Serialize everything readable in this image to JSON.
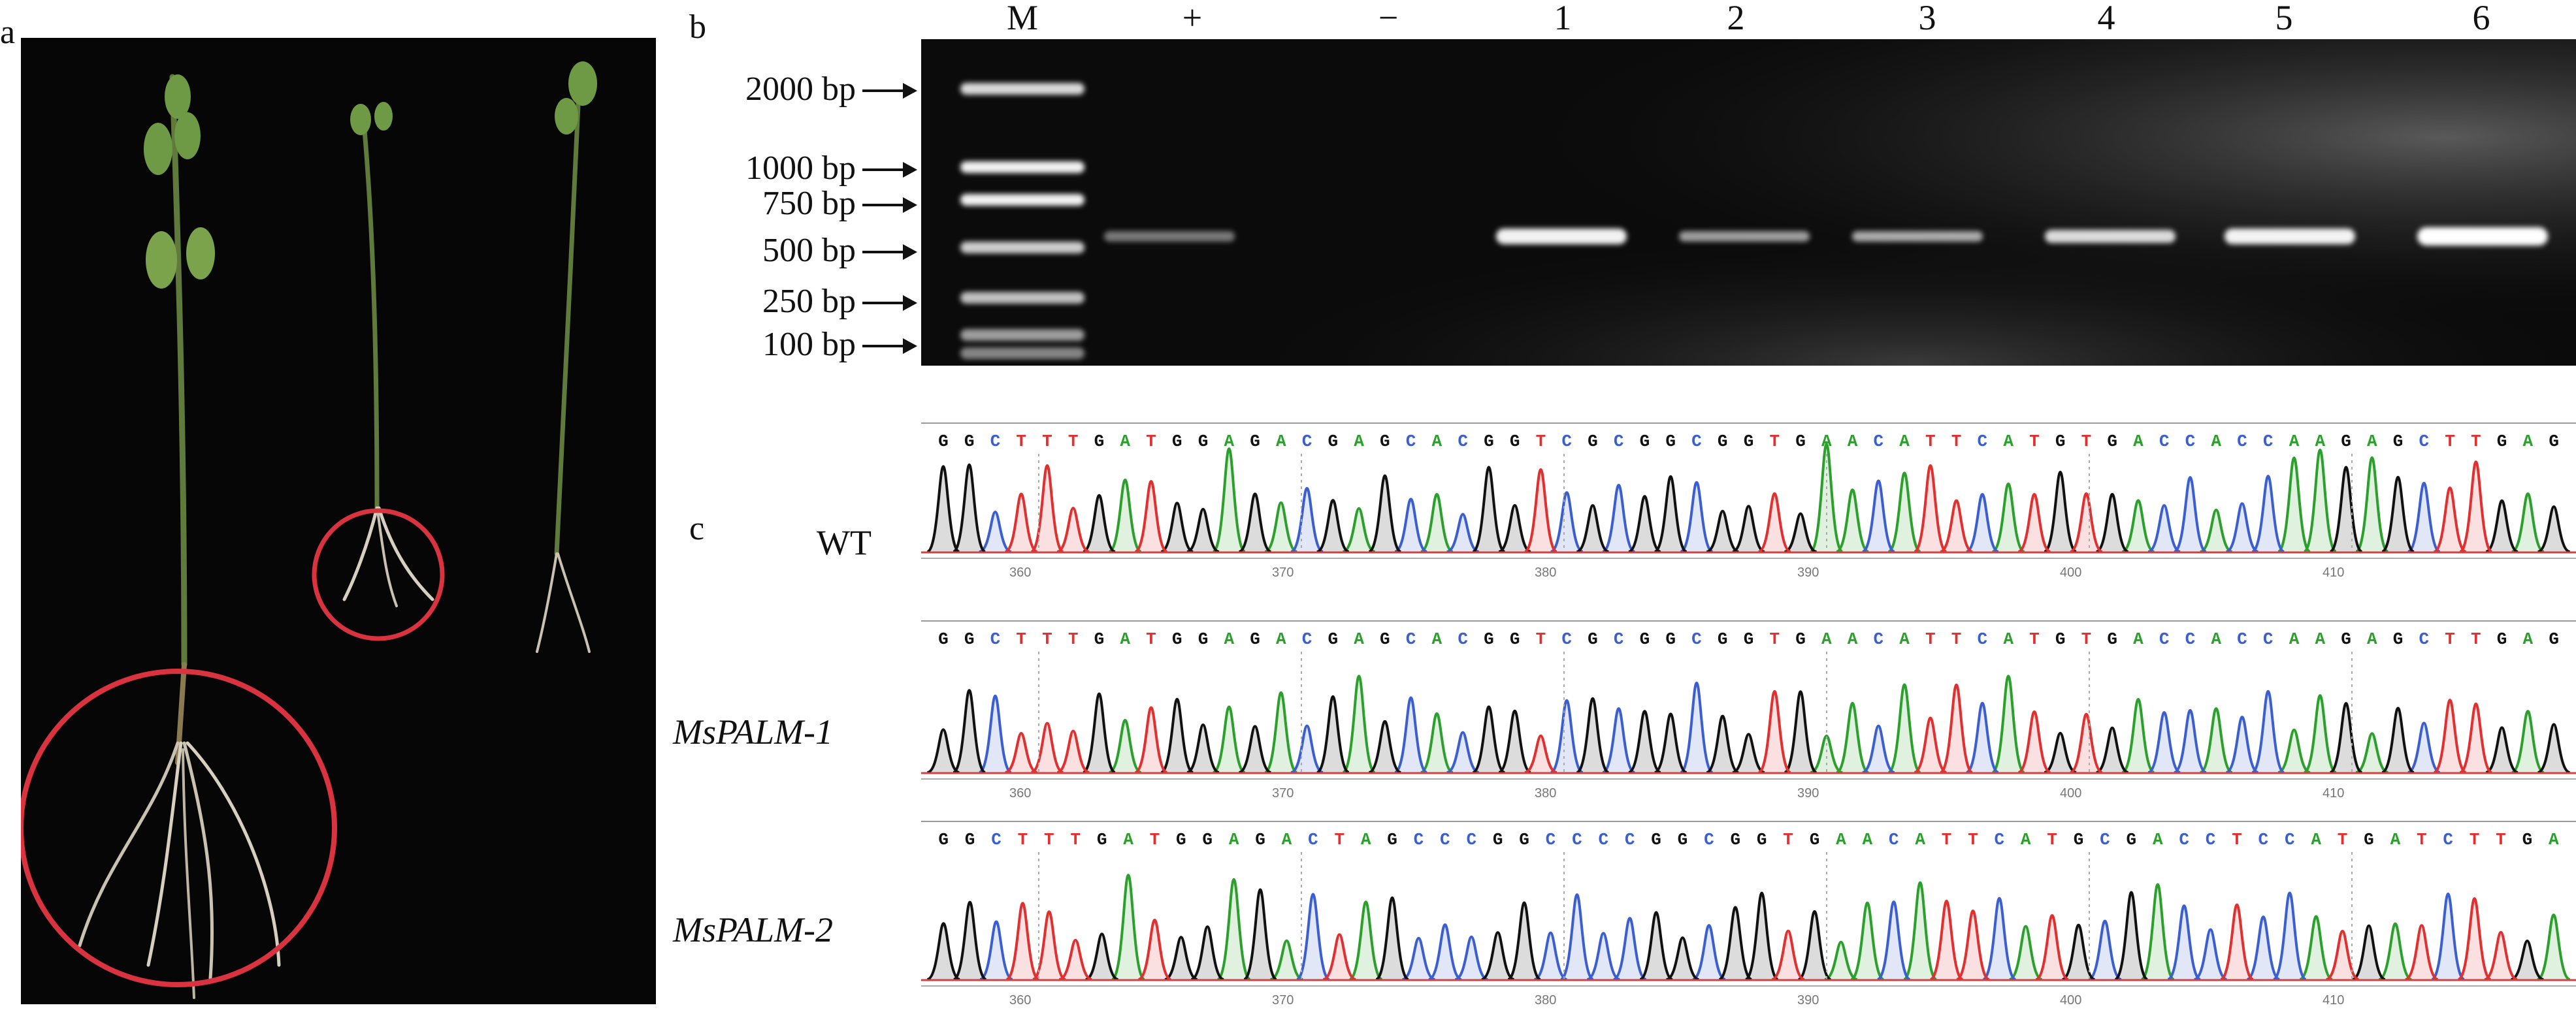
{
  "panels": {
    "a": "a",
    "b": "b",
    "c": "c"
  },
  "gel": {
    "lanes": [
      "M",
      "+",
      "−",
      "1",
      "2",
      "3",
      "4",
      "5",
      "6"
    ],
    "ladder": [
      "2000 bp",
      "1000 bp",
      "750 bp",
      "500 bp",
      "250 bp",
      "100 bp"
    ]
  },
  "traces": [
    {
      "label": "WT",
      "italic": false,
      "sequence": "GGCTTTGATGGAGACGAGCACGGTCGCGGCGGTGAACATTCATGTGACCACCAAGAGCTTGAG",
      "ticks": [
        "360",
        "370",
        "380",
        "390",
        "400",
        "410"
      ]
    },
    {
      "label": "MsPALM-1",
      "italic": true,
      "sequence": "GGCTTTGATGGAGACGAGCACGGTCGCGGCGGTGAACATTCATGTGACCACCAAGAGCTTGAG",
      "ticks": [
        "360",
        "370",
        "380",
        "390",
        "400",
        "410"
      ]
    },
    {
      "label": "MsPALM-2",
      "italic": true,
      "sequence": "GGCTTTGATGGAGACTAGCCCGGCCCCGGCGGTGAACATTCATGCGACCTCCATGATCTTGA",
      "ticks": [
        "360",
        "370",
        "380",
        "390",
        "400",
        "410"
      ]
    }
  ],
  "colors": {
    "A": "#2ca02c",
    "C": "#3b5fd0",
    "G": "#111111",
    "T": "#e03030",
    "circle": "#d9333f"
  }
}
